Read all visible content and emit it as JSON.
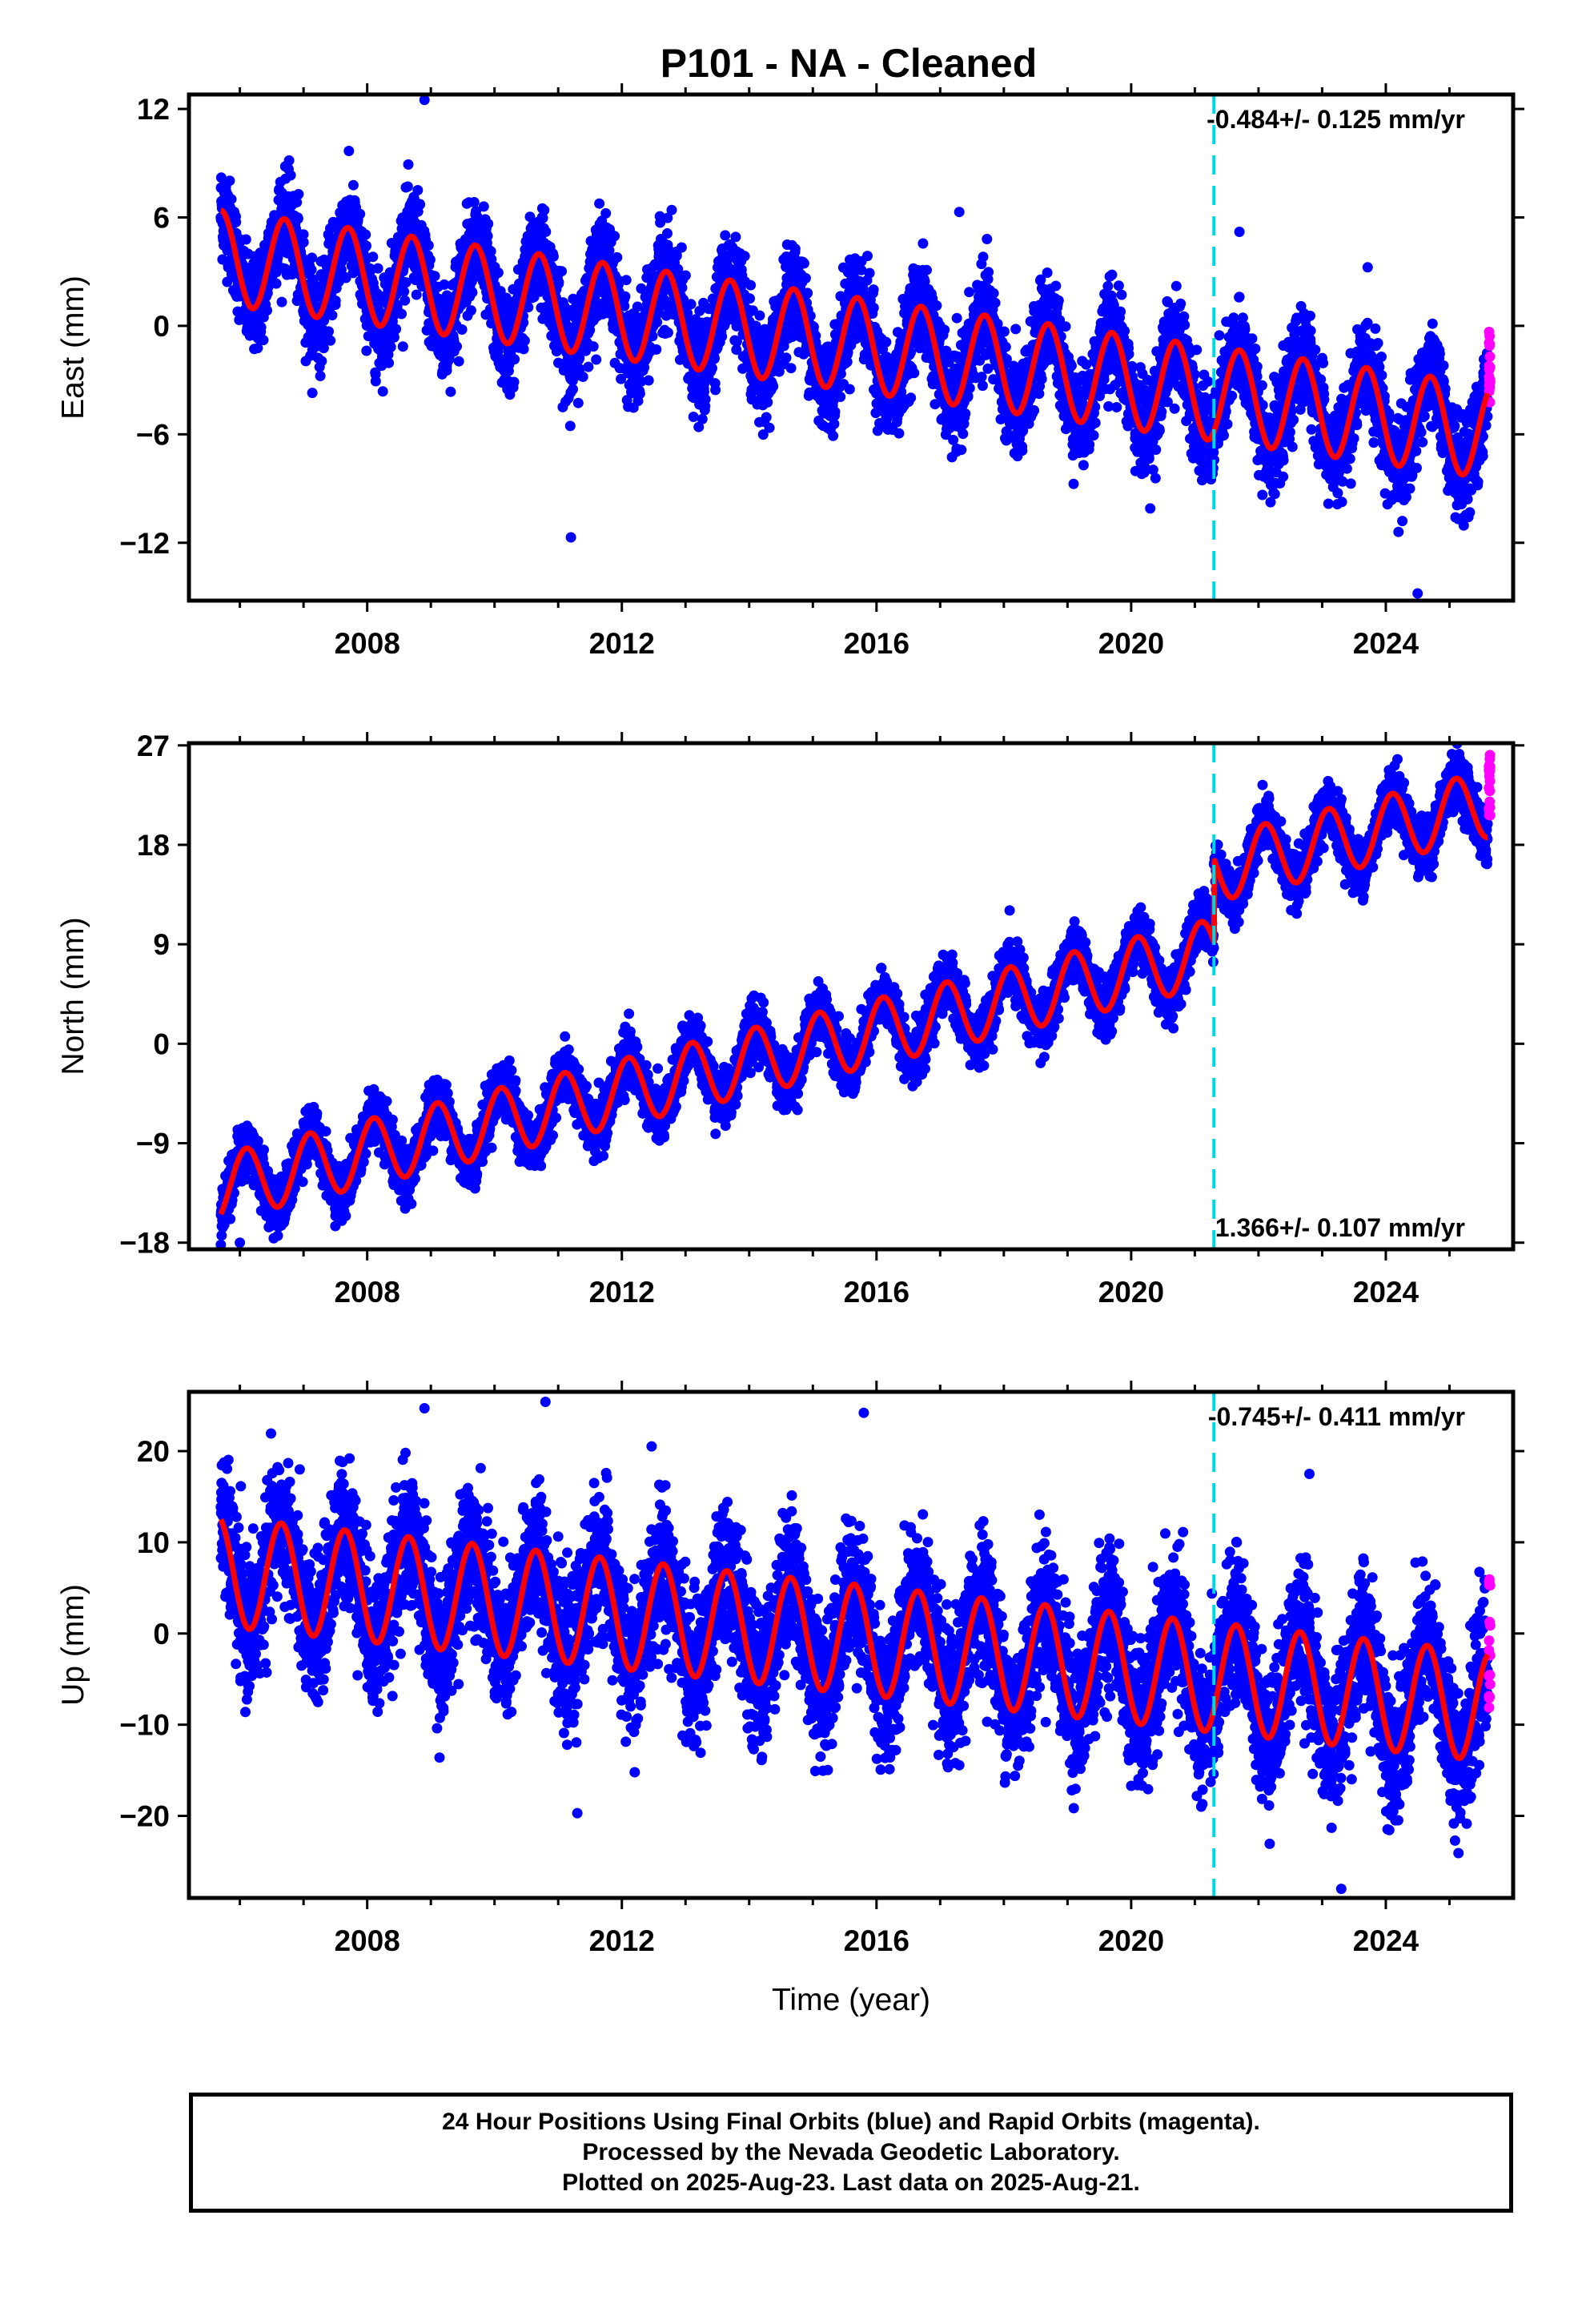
{
  "title": "P101  - NA - Cleaned",
  "colors": {
    "final_orbits": "#0000ff",
    "rapid_orbits": "#ff00ff",
    "model": "#ff0000",
    "break_line": "#00d8e0",
    "frame": "#000000"
  },
  "chart_data": [
    {
      "type": "scatter",
      "name": "east",
      "ylabel": "East (mm)",
      "xlabel": "",
      "ylim": [
        -15.2,
        12.8
      ],
      "xlim": [
        2005.2,
        2026.0
      ],
      "yticks": [
        "12",
        "6",
        "0",
        "−6",
        "−12"
      ],
      "ytick_values": [
        12,
        6,
        0,
        -6,
        -12
      ],
      "xticks": [
        "2008",
        "2012",
        "2016",
        "2020",
        "2024"
      ],
      "xtick_values": [
        2008,
        2012,
        2016,
        2020,
        2024
      ],
      "rate_label": "-0.484+/- 0.125 mm/yr",
      "rate_position": "top-right",
      "break_epoch": 2021.3,
      "model": {
        "start_year": 2005.7,
        "end_year": 2025.6,
        "offset_at_start": 3.8,
        "rate": -0.484,
        "annual_amplitude": 2.6,
        "annual_phase_year": 2005.7,
        "jump_at_break": 0.0
      },
      "scatter_sd": 1.3,
      "outliers": [
        [
          2008.9,
          12.5
        ],
        [
          2011.2,
          -11.7
        ],
        [
          2024.5,
          -14.8
        ],
        [
          2020.3,
          -10.1
        ],
        [
          2017.3,
          6.3
        ],
        [
          2021.7,
          5.2
        ]
      ],
      "rapid_points": {
        "start_year": 2025.62,
        "end_year": 2025.64,
        "ymin": -4.5,
        "ymax": 0.5
      }
    },
    {
      "type": "scatter",
      "name": "north",
      "ylabel": "North (mm)",
      "xlabel": "",
      "ylim": [
        -18.6,
        27.2
      ],
      "xlim": [
        2005.2,
        2026.0
      ],
      "yticks": [
        "27",
        "18",
        "9",
        "0",
        "−9",
        "−18"
      ],
      "ytick_values": [
        27,
        18,
        9,
        0,
        -9,
        -18
      ],
      "xticks": [
        "2008",
        "2012",
        "2016",
        "2020",
        "2024"
      ],
      "xtick_values": [
        2008,
        2012,
        2016,
        2020,
        2024
      ],
      "rate_label": "1.366+/- 0.107 mm/yr",
      "rate_position": "bottom-right",
      "break_epoch": 2021.3,
      "model": {
        "start_year": 2005.7,
        "end_year": 2025.6,
        "offset_at_start": -13.0,
        "rate": 1.366,
        "annual_amplitude": 3.0,
        "annual_phase_year": 2006.1,
        "jump_at_break": 7.5
      },
      "scatter_sd": 1.2,
      "outliers": [
        [
          2006.0,
          -18.0
        ],
        [
          2007.5,
          -16.5
        ]
      ],
      "rapid_points": {
        "start_year": 2025.62,
        "end_year": 2025.64,
        "ymin": 20.5,
        "ymax": 26.5
      }
    },
    {
      "type": "scatter",
      "name": "up",
      "ylabel": "Up (mm)",
      "xlabel": "Time (year)",
      "ylim": [
        -29.0,
        26.5
      ],
      "xlim": [
        2005.2,
        2026.0
      ],
      "yticks": [
        "20",
        "10",
        "0",
        "−10",
        "−20"
      ],
      "ytick_values": [
        20,
        10,
        0,
        -10,
        -20
      ],
      "xticks": [
        "2008",
        "2012",
        "2016",
        "2020",
        "2024"
      ],
      "xtick_values": [
        2008,
        2012,
        2016,
        2020,
        2024
      ],
      "rate_label": "-0.745+/- 0.411 mm/yr",
      "rate_position": "top-right",
      "break_epoch": 2021.3,
      "model": {
        "start_year": 2005.7,
        "end_year": 2025.6,
        "offset_at_start": 6.8,
        "rate": -0.745,
        "annual_amplitude": 6.0,
        "annual_phase_year": 2005.65,
        "jump_at_break": 0.0
      },
      "scatter_sd": 3.8,
      "outliers": [
        [
          2010.8,
          25.4
        ],
        [
          2008.9,
          24.7
        ],
        [
          2015.8,
          24.2
        ],
        [
          2022.8,
          17.5
        ],
        [
          2011.3,
          -19.7
        ],
        [
          2023.3,
          -28.0
        ]
      ],
      "rapid_points": {
        "start_year": 2025.62,
        "end_year": 2025.64,
        "ymin": -9.0,
        "ymax": 6.0
      }
    }
  ],
  "footer": {
    "line1": "24 Hour Positions Using Final Orbits (blue) and Rapid Orbits (magenta).",
    "line2": "Processed by the Nevada Geodetic Laboratory.",
    "line3": "Plotted on 2025-Aug-23. Last data on 2025-Aug-21."
  }
}
